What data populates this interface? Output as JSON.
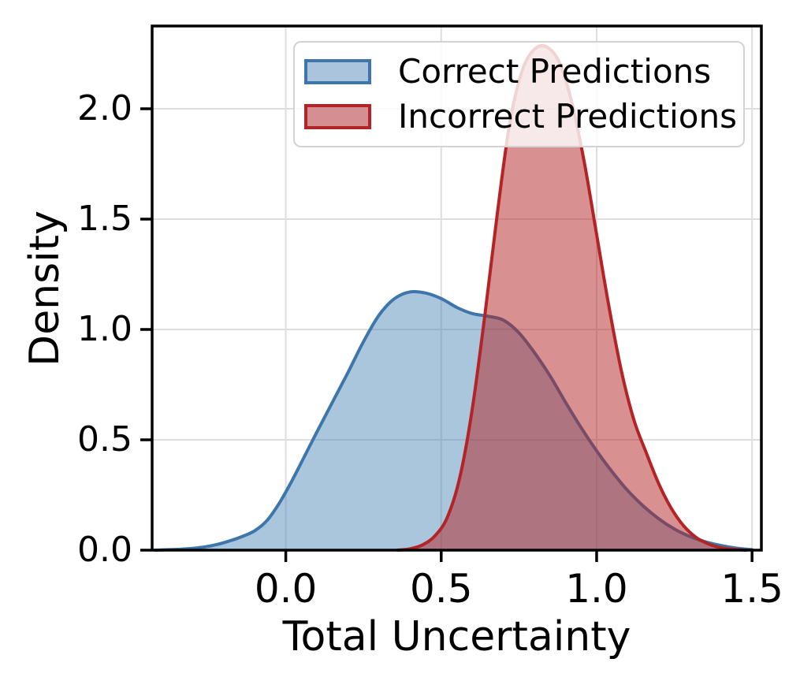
{
  "chart_data": {
    "type": "area",
    "subtype": "kde-density",
    "title": "",
    "xlabel": "Total Uncertainty",
    "ylabel": "Density",
    "xlim": [
      -0.43,
      1.53
    ],
    "ylim": [
      0,
      2.375
    ],
    "xticks": [
      0.0,
      0.5,
      1.0,
      1.5
    ],
    "xtick_labels": [
      "0.0",
      "0.5",
      "1.0",
      "1.5"
    ],
    "yticks": [
      0.0,
      0.5,
      1.0,
      1.5,
      2.0
    ],
    "ytick_labels": [
      "0.0",
      "0.5",
      "1.0",
      "1.5",
      "2.0"
    ],
    "grid": true,
    "grid_color": "#dedede",
    "legend_position": "upper-center-inside",
    "series": [
      {
        "name": "Correct Predictions",
        "line_color": "#3e76ab",
        "fill_color": "rgba(70,130,180,0.46)",
        "swatch_fill": "#a9c4dc",
        "peak": {
          "x": 0.4,
          "density": 1.17
        },
        "points": [
          [
            -0.42,
            0.0
          ],
          [
            -0.38,
            0.002
          ],
          [
            -0.34,
            0.004
          ],
          [
            -0.3,
            0.008
          ],
          [
            -0.26,
            0.015
          ],
          [
            -0.22,
            0.026
          ],
          [
            -0.18,
            0.042
          ],
          [
            -0.14,
            0.062
          ],
          [
            -0.1,
            0.088
          ],
          [
            -0.06,
            0.135
          ],
          [
            -0.02,
            0.215
          ],
          [
            0.02,
            0.315
          ],
          [
            0.06,
            0.425
          ],
          [
            0.1,
            0.535
          ],
          [
            0.15,
            0.67
          ],
          [
            0.2,
            0.805
          ],
          [
            0.25,
            0.945
          ],
          [
            0.3,
            1.065
          ],
          [
            0.35,
            1.14
          ],
          [
            0.4,
            1.17
          ],
          [
            0.45,
            1.165
          ],
          [
            0.5,
            1.14
          ],
          [
            0.55,
            1.1
          ],
          [
            0.6,
            1.072
          ],
          [
            0.65,
            1.06
          ],
          [
            0.7,
            1.042
          ],
          [
            0.75,
            0.985
          ],
          [
            0.8,
            0.895
          ],
          [
            0.85,
            0.79
          ],
          [
            0.9,
            0.67
          ],
          [
            0.95,
            0.555
          ],
          [
            1.0,
            0.45
          ],
          [
            1.05,
            0.355
          ],
          [
            1.1,
            0.27
          ],
          [
            1.15,
            0.2
          ],
          [
            1.2,
            0.142
          ],
          [
            1.25,
            0.096
          ],
          [
            1.3,
            0.062
          ],
          [
            1.35,
            0.038
          ],
          [
            1.4,
            0.021
          ],
          [
            1.45,
            0.009
          ],
          [
            1.5,
            0.002
          ]
        ]
      },
      {
        "name": "Incorrect Predictions",
        "line_color": "#b22426",
        "fill_color": "rgba(178,34,34,0.5)",
        "swatch_fill": "#d58f92",
        "peak": {
          "x": 0.84,
          "density": 2.28
        },
        "points": [
          [
            0.36,
            0.0
          ],
          [
            0.4,
            0.006
          ],
          [
            0.44,
            0.024
          ],
          [
            0.48,
            0.065
          ],
          [
            0.52,
            0.15
          ],
          [
            0.56,
            0.33
          ],
          [
            0.6,
            0.64
          ],
          [
            0.64,
            1.06
          ],
          [
            0.68,
            1.52
          ],
          [
            0.72,
            1.93
          ],
          [
            0.76,
            2.17
          ],
          [
            0.8,
            2.27
          ],
          [
            0.84,
            2.28
          ],
          [
            0.88,
            2.21
          ],
          [
            0.92,
            2.03
          ],
          [
            0.96,
            1.76
          ],
          [
            1.0,
            1.43
          ],
          [
            1.04,
            1.1
          ],
          [
            1.08,
            0.81
          ],
          [
            1.12,
            0.59
          ],
          [
            1.16,
            0.44
          ],
          [
            1.2,
            0.3
          ],
          [
            1.24,
            0.19
          ],
          [
            1.28,
            0.11
          ],
          [
            1.32,
            0.058
          ],
          [
            1.36,
            0.028
          ],
          [
            1.4,
            0.011
          ],
          [
            1.44,
            0.004
          ],
          [
            1.48,
            0.0
          ]
        ]
      }
    ]
  }
}
